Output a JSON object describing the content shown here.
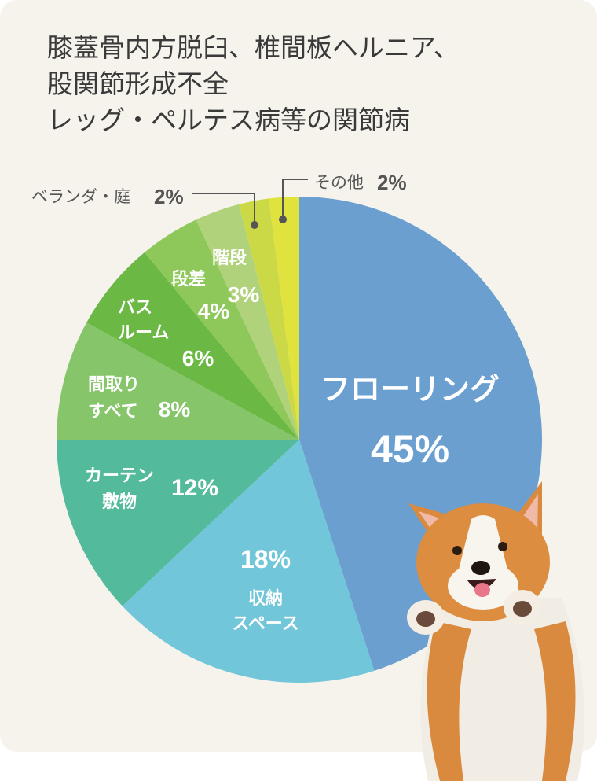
{
  "title_lines": [
    "膝蓋骨内方脱臼、椎間板ヘルニア、",
    "股関節形成不全",
    "レッグ・ペルテス病等の関節病"
  ],
  "chart_data": {
    "type": "pie",
    "start": "top",
    "direction": "clockwise",
    "unit": "%",
    "slices": [
      {
        "label": "フローリング",
        "value": 45,
        "pct_text": "45%",
        "color": "#6a9fd0"
      },
      {
        "label": "収納スペース",
        "value": 18,
        "pct_text": "18%",
        "color": "#72c6d9"
      },
      {
        "label": "カーテン敷物",
        "value": 12,
        "pct_text": "12%",
        "color": "#53ba9b"
      },
      {
        "label": "間取りすべて",
        "value": 8,
        "pct_text": "8%",
        "color": "#86c56a"
      },
      {
        "label": "バスルーム",
        "value": 6,
        "pct_text": "6%",
        "color": "#6bb944"
      },
      {
        "label": "段差",
        "value": 4,
        "pct_text": "4%",
        "color": "#8ec75a"
      },
      {
        "label": "階段",
        "value": 3,
        "pct_text": "3%",
        "color": "#b0d27a"
      },
      {
        "label": "ベランダ・庭",
        "value": 2,
        "pct_text": "2%",
        "color": "#ccd947"
      },
      {
        "label": "その他",
        "value": 2,
        "pct_text": "2%",
        "color": "#e0e23d"
      }
    ]
  },
  "split_labels": {
    "storage": [
      "収納",
      "スペース"
    ],
    "curtain": [
      "カーテン",
      "敷物"
    ],
    "madori": [
      "間取り",
      "すべて"
    ],
    "bath": [
      "バス",
      "ルーム"
    ]
  }
}
